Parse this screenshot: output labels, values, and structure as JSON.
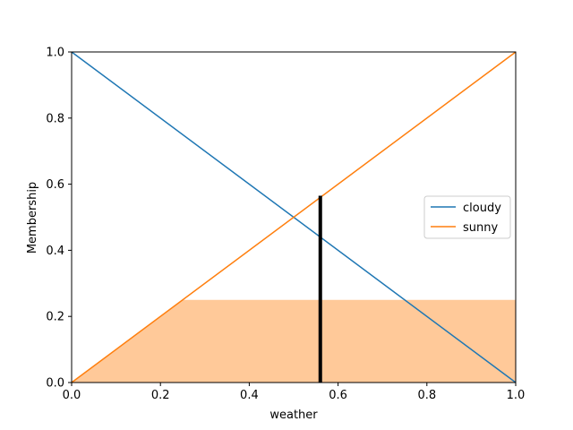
{
  "chart_data": {
    "type": "line",
    "title": "",
    "xlabel": "weather",
    "ylabel": "Membership",
    "xlim": [
      0,
      1
    ],
    "ylim": [
      0,
      1
    ],
    "xticks": [
      "0.0",
      "0.2",
      "0.4",
      "0.6",
      "0.8",
      "1.0"
    ],
    "yticks": [
      "0.0",
      "0.2",
      "0.4",
      "0.6",
      "0.8",
      "1.0"
    ],
    "grid": false,
    "legend_position": "center-right",
    "series": [
      {
        "name": "cloudy",
        "color": "#1f77b4",
        "x": [
          0,
          1
        ],
        "y": [
          1,
          0
        ]
      },
      {
        "name": "sunny",
        "color": "#ff7f0e",
        "x": [
          0,
          1
        ],
        "y": [
          0,
          1
        ]
      }
    ],
    "filled_region": {
      "color": "#ffc999",
      "x": [
        0,
        0.25,
        1,
        1
      ],
      "y": [
        0,
        0.25,
        0.25,
        0
      ]
    },
    "vertical_marker": {
      "x": 0.56,
      "y_top": 0.565,
      "color": "#000000"
    }
  }
}
